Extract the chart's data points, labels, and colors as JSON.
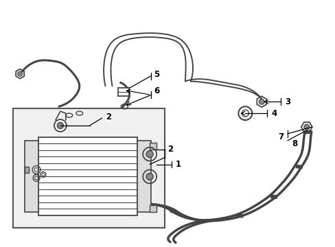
{
  "bg_color": "#ffffff",
  "line_color": "#444444",
  "fig_width": 4.89,
  "fig_height": 3.6,
  "dpi": 100
}
